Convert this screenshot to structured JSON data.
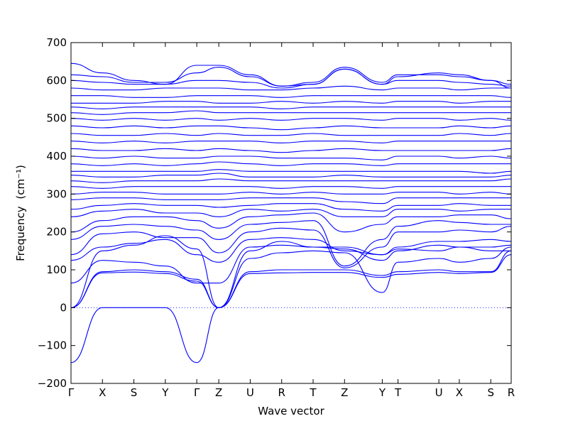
{
  "chart_data": {
    "type": "line",
    "xlabel": "Wave vector",
    "ylabel": "Frequency",
    "ylabel_unit": "(cm⁻¹)",
    "ylim": [
      -200,
      700
    ],
    "yticks": [
      -200,
      -100,
      0,
      100,
      200,
      300,
      400,
      500,
      600,
      700
    ],
    "xlim": [
      0,
      14
    ],
    "zero_line": true,
    "grid": false,
    "band_color": "#0000ff",
    "high_symmetry_points": [
      {
        "label": "Γ",
        "x": 0.0
      },
      {
        "label": "X",
        "x": 1.0
      },
      {
        "label": "S",
        "x": 2.0
      },
      {
        "label": "Y",
        "x": 3.0
      },
      {
        "label": "Γ",
        "x": 4.0
      },
      {
        "label": "Z",
        "x": 4.7
      },
      {
        "label": "U",
        "x": 5.7
      },
      {
        "label": "R",
        "x": 6.7
      },
      {
        "label": "T",
        "x": 7.7
      },
      {
        "label": "Z",
        "x": 8.7
      },
      {
        "label": "Y",
        "x": 9.9
      },
      {
        "label": "T",
        "x": 10.4
      },
      {
        "label": "U",
        "x": 11.7
      },
      {
        "label": "X",
        "x": 12.35
      },
      {
        "label": "S",
        "x": 13.35
      },
      {
        "label": "R",
        "x": 14.0
      }
    ],
    "series": [
      {
        "values": [
          0,
          150,
          165,
          190,
          155,
          0,
          150,
          175,
          160,
          160,
          140,
          155,
          150,
          160,
          150,
          150
        ]
      },
      {
        "values": [
          0,
          95,
          100,
          95,
          75,
          0,
          95,
          100,
          100,
          100,
          85,
          95,
          100,
          95,
          95,
          150
        ]
      },
      {
        "values": [
          0,
          92,
          94,
          90,
          70,
          0,
          90,
          92,
          93,
          93,
          80,
          88,
          93,
          90,
          93,
          140
        ]
      },
      {
        "values": [
          -145,
          0,
          0,
          0,
          -145,
          0,
          130,
          145,
          150,
          145,
          40,
          120,
          130,
          120,
          130,
          160
        ]
      },
      {
        "values": [
          65,
          125,
          120,
          110,
          65,
          65,
          160,
          165,
          160,
          155,
          125,
          150,
          165,
          160,
          160,
          165
        ]
      },
      {
        "values": [
          125,
          160,
          170,
          180,
          140,
          120,
          180,
          185,
          180,
          150,
          140,
          160,
          175,
          175,
          180,
          175
        ]
      },
      {
        "values": [
          140,
          195,
          200,
          185,
          185,
          145,
          200,
          210,
          205,
          105,
          160,
          200,
          200,
          205,
          200,
          215
        ]
      },
      {
        "values": [
          180,
          215,
          220,
          215,
          205,
          180,
          220,
          225,
          230,
          110,
          180,
          215,
          230,
          225,
          220,
          220
        ]
      },
      {
        "values": [
          200,
          230,
          240,
          240,
          230,
          210,
          240,
          245,
          250,
          200,
          220,
          240,
          240,
          245,
          245,
          235
        ]
      },
      {
        "values": [
          240,
          255,
          260,
          250,
          250,
          240,
          260,
          255,
          260,
          240,
          240,
          260,
          260,
          255,
          260,
          260
        ]
      },
      {
        "values": [
          260,
          270,
          275,
          270,
          270,
          265,
          270,
          275,
          275,
          260,
          255,
          270,
          270,
          275,
          270,
          270
        ]
      },
      {
        "values": [
          285,
          290,
          290,
          285,
          285,
          285,
          290,
          290,
          290,
          280,
          275,
          290,
          290,
          290,
          290,
          290
        ]
      },
      {
        "values": [
          300,
          305,
          305,
          300,
          300,
          300,
          305,
          300,
          305,
          300,
          300,
          305,
          305,
          300,
          305,
          300
        ]
      },
      {
        "values": [
          320,
          315,
          320,
          320,
          320,
          320,
          320,
          315,
          320,
          320,
          315,
          320,
          320,
          320,
          320,
          320
        ]
      },
      {
        "values": [
          335,
          330,
          335,
          335,
          335,
          340,
          335,
          335,
          335,
          335,
          335,
          335,
          335,
          335,
          335,
          340
        ]
      },
      {
        "values": [
          350,
          345,
          345,
          350,
          350,
          355,
          345,
          345,
          345,
          350,
          345,
          345,
          345,
          345,
          345,
          350
        ]
      },
      {
        "values": [
          360,
          360,
          360,
          360,
          360,
          365,
          360,
          360,
          360,
          360,
          360,
          360,
          360,
          360,
          355,
          360
        ]
      },
      {
        "values": [
          380,
          375,
          380,
          375,
          380,
          385,
          380,
          375,
          380,
          380,
          375,
          380,
          380,
          380,
          380,
          380
        ]
      },
      {
        "values": [
          400,
          395,
          400,
          395,
          395,
          400,
          400,
          395,
          395,
          395,
          390,
          400,
          400,
          395,
          400,
          395
        ]
      },
      {
        "values": [
          420,
          415,
          415,
          420,
          415,
          420,
          415,
          410,
          415,
          420,
          415,
          415,
          415,
          415,
          415,
          420
        ]
      },
      {
        "values": [
          440,
          435,
          440,
          435,
          440,
          440,
          440,
          435,
          440,
          440,
          435,
          440,
          440,
          440,
          440,
          440
        ]
      },
      {
        "values": [
          460,
          455,
          455,
          460,
          455,
          460,
          455,
          455,
          460,
          455,
          455,
          455,
          455,
          460,
          455,
          460
        ]
      },
      {
        "values": [
          480,
          475,
          480,
          475,
          480,
          480,
          475,
          470,
          475,
          480,
          475,
          475,
          475,
          480,
          475,
          480
        ]
      },
      {
        "values": [
          500,
          495,
          500,
          495,
          500,
          495,
          500,
          495,
          500,
          500,
          495,
          500,
          500,
          495,
          500,
          495
        ]
      },
      {
        "values": [
          515,
          510,
          515,
          515,
          520,
          515,
          515,
          515,
          515,
          515,
          515,
          515,
          515,
          515,
          515,
          515
        ]
      },
      {
        "values": [
          530,
          525,
          530,
          530,
          530,
          530,
          530,
          525,
          530,
          530,
          530,
          530,
          530,
          530,
          530,
          530
        ]
      },
      {
        "values": [
          540,
          540,
          540,
          545,
          545,
          540,
          540,
          545,
          540,
          545,
          540,
          545,
          545,
          540,
          545,
          545
        ]
      },
      {
        "values": [
          560,
          560,
          555,
          555,
          560,
          560,
          560,
          555,
          560,
          560,
          560,
          560,
          560,
          560,
          560,
          555
        ]
      },
      {
        "values": [
          580,
          575,
          575,
          580,
          580,
          580,
          575,
          575,
          580,
          585,
          575,
          580,
          580,
          575,
          580,
          580
        ]
      },
      {
        "values": [
          600,
          595,
          590,
          590,
          600,
          600,
          595,
          580,
          590,
          630,
          590,
          600,
          600,
          595,
          590,
          585
        ]
      },
      {
        "values": [
          615,
          610,
          595,
          595,
          620,
          635,
          610,
          585,
          595,
          635,
          595,
          615,
          615,
          610,
          600,
          590
        ]
      },
      {
        "values": [
          645,
          620,
          600,
          590,
          640,
          640,
          615,
          585,
          590,
          630,
          590,
          610,
          620,
          615,
          600,
          580
        ]
      }
    ]
  }
}
